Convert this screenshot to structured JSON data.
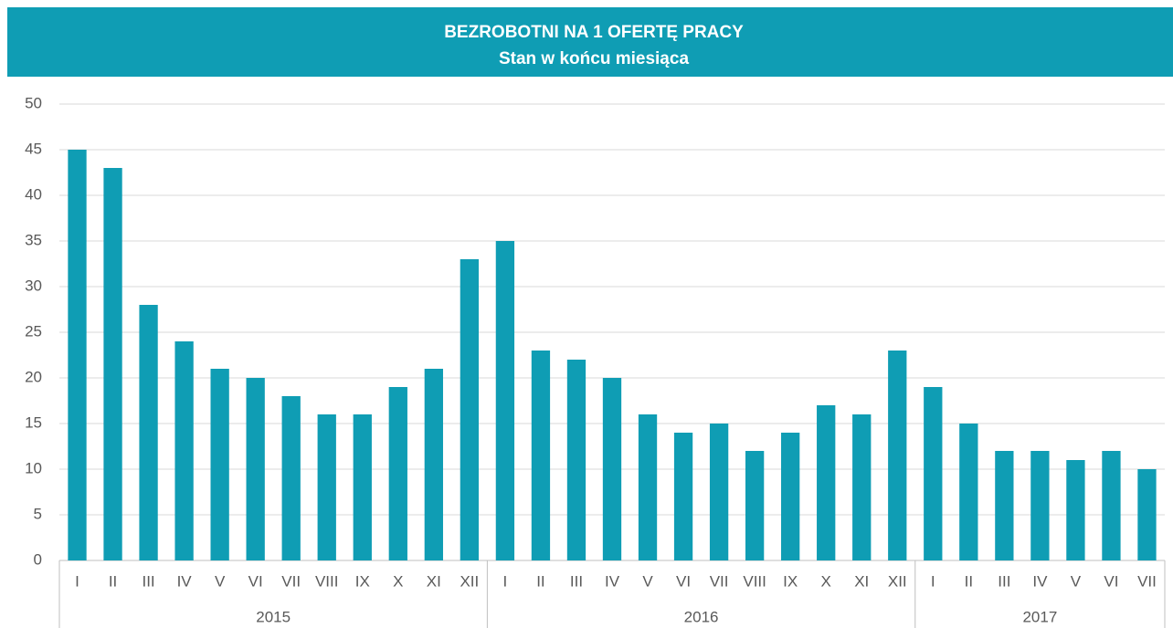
{
  "chart_data": {
    "type": "bar",
    "title": "BEZROBOTNI NA 1 OFERTĘ PRACY",
    "subtitle": "Stan w końcu miesiąca",
    "color": "#0f9db4",
    "grid": true,
    "ylim": [
      0,
      50
    ],
    "yticks": [
      0,
      5,
      10,
      15,
      20,
      25,
      30,
      35,
      40,
      45,
      50
    ],
    "groups": [
      {
        "label": "2015",
        "categories": [
          "I",
          "II",
          "III",
          "IV",
          "V",
          "VI",
          "VII",
          "VIII",
          "IX",
          "X",
          "XI",
          "XII"
        ],
        "values": [
          45,
          43,
          28,
          24,
          21,
          20,
          18,
          16,
          16,
          19,
          21,
          33
        ]
      },
      {
        "label": "2016",
        "categories": [
          "I",
          "II",
          "III",
          "IV",
          "V",
          "VI",
          "VII",
          "VIII",
          "IX",
          "X",
          "XI",
          "XII"
        ],
        "values": [
          35,
          23,
          22,
          20,
          16,
          14,
          15,
          12,
          14,
          17,
          16,
          23
        ]
      },
      {
        "label": "2017",
        "categories": [
          "I",
          "II",
          "III",
          "IV",
          "V",
          "VI",
          "VII"
        ],
        "values": [
          19,
          15,
          12,
          12,
          11,
          12,
          10
        ]
      }
    ]
  }
}
